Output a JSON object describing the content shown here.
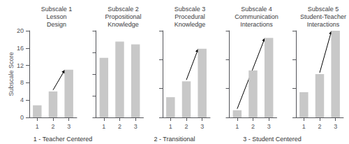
{
  "chart_data": [
    {
      "type": "bar",
      "title": "Subscale 1\nLesson\nDesign",
      "ylabel": "Subscale Score",
      "categories": [
        "1",
        "2",
        "3"
      ],
      "values": [
        2.8,
        6.0,
        11.0
      ],
      "color": "#c8c8c8",
      "ylim": [
        0,
        20
      ],
      "yticks": [
        0,
        4,
        8,
        12,
        16,
        20
      ],
      "grid": false,
      "arrow": {
        "from": "2",
        "to": "3"
      }
    },
    {
      "type": "bar",
      "title": "Subscale 2\nPropositional\nKnowledge",
      "categories": [
        "1",
        "2",
        "3"
      ],
      "values": [
        11.0,
        14.0,
        13.5
      ],
      "color": "#c8c8c8",
      "ylim": [
        0,
        16
      ],
      "yticks": [
        0,
        4,
        8,
        12,
        16
      ],
      "grid": false,
      "tick_labels": "x"
    },
    {
      "type": "bar",
      "title": "Subscale 3\nProcedural\nKnowledge",
      "categories": [
        "1",
        "2",
        "3"
      ],
      "values": [
        2.8,
        5.0,
        9.5
      ],
      "color": "#c8c8c8",
      "ylim": [
        0,
        12
      ],
      "yticks": [
        0,
        4,
        8,
        12
      ],
      "grid": false,
      "tick_labels": "x",
      "arrow": {
        "from": "2",
        "to": "3"
      }
    },
    {
      "type": "bar",
      "title": "Subscale 4\nCommunication\nInteractions",
      "categories": [
        "1",
        "2",
        "3"
      ],
      "values": [
        1.0,
        6.5,
        11.0
      ],
      "color": "#c8c8c8",
      "ylim": [
        0,
        12
      ],
      "yticks": [
        0,
        4,
        8,
        12
      ],
      "grid": false,
      "tick_labels": "x",
      "arrow": {
        "from": "1",
        "to": "3"
      }
    },
    {
      "type": "bar",
      "title": "Subscale 5\nStudent-Teacher\nInteractions",
      "categories": [
        "1",
        "2",
        "3"
      ],
      "values": [
        3.5,
        6.0,
        12.0
      ],
      "color": "#c8c8c8",
      "ylim": [
        0,
        12
      ],
      "yticks": [
        0,
        4,
        8,
        12
      ],
      "grid": false,
      "tick_labels": "x",
      "arrow": {
        "from": "2",
        "to": "3"
      }
    }
  ],
  "annotations": [
    "1 - Teacher Centered",
    "2 - Transitional",
    "3 - Student Centered"
  ]
}
